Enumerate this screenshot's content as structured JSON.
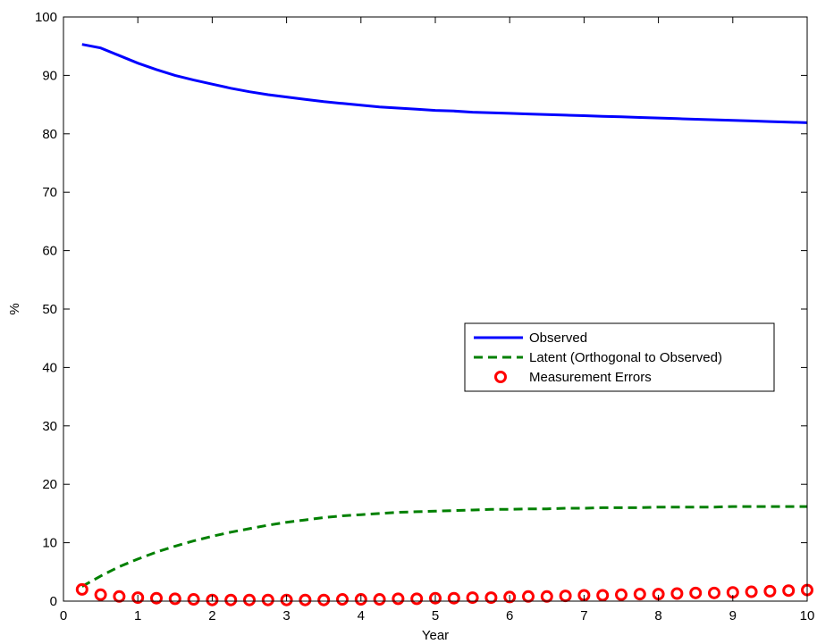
{
  "chart_data": {
    "type": "line",
    "title": "",
    "xlabel": "Year",
    "ylabel": "%",
    "xlim": [
      0,
      10
    ],
    "ylim": [
      0,
      100
    ],
    "xticks": [
      0,
      1,
      2,
      3,
      4,
      5,
      6,
      7,
      8,
      9,
      10
    ],
    "yticks": [
      0,
      10,
      20,
      30,
      40,
      50,
      60,
      70,
      80,
      90,
      100
    ],
    "grid": false,
    "legend_position": "center-right",
    "x": [
      0.25,
      0.5,
      0.75,
      1,
      1.25,
      1.5,
      1.75,
      2,
      2.25,
      2.5,
      2.75,
      3,
      3.25,
      3.5,
      3.75,
      4,
      4.25,
      4.5,
      4.75,
      5,
      5.25,
      5.5,
      5.75,
      6,
      6.25,
      6.5,
      6.75,
      7,
      7.25,
      7.5,
      7.75,
      8,
      8.25,
      8.5,
      8.75,
      9,
      9.25,
      9.5,
      9.75,
      10
    ],
    "series": [
      {
        "name": "Observed",
        "color": "#0000ff",
        "style": "solid",
        "values": [
          95.3,
          94.7,
          93.4,
          92.1,
          91.0,
          90.0,
          89.2,
          88.5,
          87.8,
          87.2,
          86.7,
          86.3,
          85.9,
          85.5,
          85.2,
          84.9,
          84.6,
          84.4,
          84.2,
          84.0,
          83.9,
          83.7,
          83.6,
          83.5,
          83.4,
          83.3,
          83.2,
          83.1,
          83.0,
          82.9,
          82.8,
          82.7,
          82.6,
          82.5,
          82.4,
          82.3,
          82.2,
          82.1,
          82.0,
          81.9
        ]
      },
      {
        "name": "Latent (Orthogonal to Observed)",
        "color": "#008000",
        "style": "dashed",
        "values": [
          2.5,
          4.3,
          5.9,
          7.2,
          8.4,
          9.4,
          10.3,
          11.1,
          11.8,
          12.4,
          13.0,
          13.5,
          13.9,
          14.3,
          14.6,
          14.8,
          15.0,
          15.2,
          15.3,
          15.4,
          15.5,
          15.6,
          15.7,
          15.7,
          15.8,
          15.8,
          15.9,
          15.9,
          16.0,
          16.0,
          16.0,
          16.1,
          16.1,
          16.1,
          16.1,
          16.2,
          16.2,
          16.2,
          16.2,
          16.2
        ]
      },
      {
        "name": "Measurement Errors",
        "color": "#ff0000",
        "style": "marker-circle",
        "values": [
          2.0,
          1.1,
          0.8,
          0.6,
          0.5,
          0.4,
          0.3,
          0.2,
          0.2,
          0.2,
          0.2,
          0.2,
          0.2,
          0.2,
          0.3,
          0.3,
          0.3,
          0.4,
          0.4,
          0.5,
          0.5,
          0.6,
          0.6,
          0.7,
          0.8,
          0.8,
          0.9,
          1.0,
          1.0,
          1.1,
          1.2,
          1.2,
          1.3,
          1.4,
          1.4,
          1.5,
          1.6,
          1.7,
          1.8,
          1.9
        ]
      }
    ]
  }
}
